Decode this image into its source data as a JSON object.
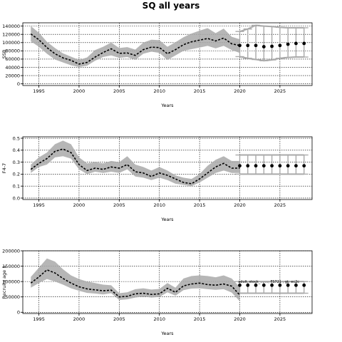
{
  "figure": {
    "title": "SQ all years"
  },
  "chart_data": [
    {
      "type": "line",
      "title": "",
      "xlabel": "Years",
      "ylabel": "SSB",
      "xlim": [
        1993,
        2029
      ],
      "ylim": [
        -4000,
        148000
      ],
      "grid": true,
      "x_ticks": [
        1995,
        2000,
        2005,
        2010,
        2015,
        2020,
        2025
      ],
      "y_ticks": [
        0,
        20000,
        40000,
        60000,
        80000,
        100000,
        120000,
        140000
      ],
      "historical": {
        "x": [
          1994,
          1995,
          1996,
          1997,
          1998,
          1999,
          2000,
          2001,
          2002,
          2003,
          2004,
          2005,
          2006,
          2007,
          2008,
          2009,
          2010,
          2011,
          2012,
          2013,
          2014,
          2015,
          2016,
          2017,
          2018,
          2019,
          2020
        ],
        "median": [
          121000,
          107000,
          88000,
          73000,
          63000,
          57000,
          48000,
          52000,
          65000,
          76000,
          85000,
          74000,
          75000,
          69000,
          83000,
          89000,
          88000,
          73000,
          83000,
          95000,
          102000,
          106000,
          110000,
          104000,
          111000,
          97000,
          93000
        ],
        "lower": [
          103000,
          90000,
          73000,
          59000,
          52000,
          45000,
          41000,
          44000,
          56000,
          65000,
          69000,
          63000,
          65000,
          58000,
          73000,
          78000,
          75000,
          58000,
          69000,
          80000,
          84000,
          88000,
          92000,
          86000,
          92000,
          82000,
          75000
        ],
        "upper": [
          140000,
          124000,
          102000,
          87000,
          74000,
          66000,
          58000,
          64000,
          82000,
          90000,
          100000,
          87000,
          89000,
          83000,
          100000,
          107000,
          106000,
          90000,
          101000,
          113000,
          122000,
          129000,
          135000,
          123000,
          134000,
          114000,
          108000
        ]
      },
      "projection": {
        "x": [
          2020,
          2021,
          2022,
          2023,
          2024,
          2025,
          2026,
          2027,
          2028
        ],
        "median": [
          93000,
          93000,
          93000,
          90000,
          91000,
          93000,
          96000,
          98000,
          98000
        ],
        "lower": [
          66000,
          62000,
          59000,
          56000,
          58000,
          62000,
          64000,
          65000,
          65000
        ],
        "upper": [
          127000,
          133000,
          142000,
          140000,
          139000,
          137000,
          136000,
          136000,
          136000
        ]
      }
    },
    {
      "type": "line",
      "title": "",
      "xlabel": "Years",
      "ylabel": "F4-7",
      "xlim": [
        1993,
        2029
      ],
      "ylim": [
        -0.012,
        0.512
      ],
      "grid": true,
      "x_ticks": [
        1995,
        2000,
        2005,
        2010,
        2015,
        2020,
        2025
      ],
      "y_ticks": [
        0.0,
        0.1,
        0.2,
        0.3,
        0.4,
        0.5
      ],
      "y_tick_labels": [
        "0.0",
        "0.1",
        "0.2",
        "0.3",
        "0.4",
        "0.5"
      ],
      "historical": {
        "x": [
          1994,
          1995,
          1996,
          1997,
          1998,
          1999,
          2000,
          2001,
          2002,
          2003,
          2004,
          2005,
          2006,
          2007,
          2008,
          2009,
          2010,
          2011,
          2012,
          2013,
          2014,
          2015,
          2016,
          2017,
          2018,
          2019,
          2020
        ],
        "median": [
          0.24,
          0.29,
          0.33,
          0.39,
          0.41,
          0.38,
          0.28,
          0.23,
          0.25,
          0.24,
          0.26,
          0.25,
          0.28,
          0.22,
          0.21,
          0.18,
          0.21,
          0.19,
          0.16,
          0.13,
          0.12,
          0.16,
          0.21,
          0.26,
          0.29,
          0.25,
          0.25
        ],
        "lower": [
          0.21,
          0.26,
          0.28,
          0.34,
          0.35,
          0.33,
          0.24,
          0.2,
          0.22,
          0.21,
          0.22,
          0.21,
          0.24,
          0.18,
          0.17,
          0.15,
          0.17,
          0.15,
          0.12,
          0.11,
          0.1,
          0.13,
          0.17,
          0.21,
          0.23,
          0.21,
          0.21
        ],
        "upper": [
          0.28,
          0.34,
          0.38,
          0.45,
          0.48,
          0.45,
          0.34,
          0.29,
          0.3,
          0.29,
          0.31,
          0.3,
          0.35,
          0.28,
          0.26,
          0.23,
          0.26,
          0.23,
          0.19,
          0.17,
          0.16,
          0.2,
          0.27,
          0.32,
          0.35,
          0.31,
          0.31
        ]
      },
      "projection": {
        "x": [
          2020,
          2021,
          2022,
          2023,
          2024,
          2025,
          2026,
          2027,
          2028
        ],
        "median": [
          0.27,
          0.27,
          0.27,
          0.27,
          0.27,
          0.27,
          0.27,
          0.27,
          0.27
        ],
        "lower": [
          0.2,
          0.2,
          0.2,
          0.2,
          0.2,
          0.2,
          0.2,
          0.2,
          0.2
        ],
        "upper": [
          0.36,
          0.36,
          0.36,
          0.36,
          0.36,
          0.36,
          0.36,
          0.36,
          0.36
        ]
      }
    },
    {
      "type": "line",
      "title": "",
      "xlabel": "Years",
      "ylabel": "Recruits age 1",
      "xlim": [
        1993,
        2029
      ],
      "ylim": [
        -4000,
        200000
      ],
      "grid": true,
      "x_ticks": [
        1995,
        2000,
        2005,
        2010,
        2015,
        2020,
        2025
      ],
      "y_ticks": [
        0,
        50000,
        100000,
        150000,
        200000
      ],
      "annotation": "adult_stock_... ..., FS721 , gt: ec2c",
      "historical": {
        "x": [
          1994,
          1995,
          1996,
          1997,
          1998,
          1999,
          2000,
          2001,
          2002,
          2003,
          2004,
          2005,
          2006,
          2007,
          2008,
          2009,
          2010,
          2011,
          2012,
          2013,
          2014,
          2015,
          2016,
          2017,
          2018,
          2019,
          2020
        ],
        "median": [
          95000,
          115000,
          138000,
          128000,
          110000,
          95000,
          83000,
          76000,
          73000,
          70000,
          72000,
          50000,
          52000,
          60000,
          62000,
          58000,
          60000,
          78000,
          65000,
          86000,
          92000,
          95000,
          90000,
          88000,
          92000,
          85000,
          56000
        ],
        "lower": [
          80000,
          95000,
          108000,
          100000,
          90000,
          78000,
          70000,
          63000,
          61000,
          58000,
          62000,
          40000,
          42000,
          48000,
          51000,
          48000,
          50000,
          65000,
          54000,
          72000,
          77000,
          78000,
          75000,
          73000,
          75000,
          64000,
          36000
        ],
        "upper": [
          115000,
          145000,
          175000,
          165000,
          140000,
          120000,
          108000,
          100000,
          95000,
          90000,
          88000,
          62000,
          65000,
          75000,
          78000,
          74000,
          76000,
          95000,
          80000,
          110000,
          118000,
          120000,
          118000,
          114000,
          120000,
          110000,
          82000
        ]
      },
      "projection": {
        "x": [
          2020,
          2021,
          2022,
          2023,
          2024,
          2025,
          2026,
          2027,
          2028
        ],
        "median": [
          88000,
          88000,
          88000,
          88000,
          88000,
          88000,
          88000,
          88000,
          88000
        ],
        "lower": [
          62000,
          62000,
          62000,
          62000,
          62000,
          62000,
          62000,
          62000,
          62000
        ],
        "upper": [
          100000,
          100000,
          100000,
          100000,
          100000,
          100000,
          100000,
          100000,
          100000
        ]
      }
    }
  ]
}
